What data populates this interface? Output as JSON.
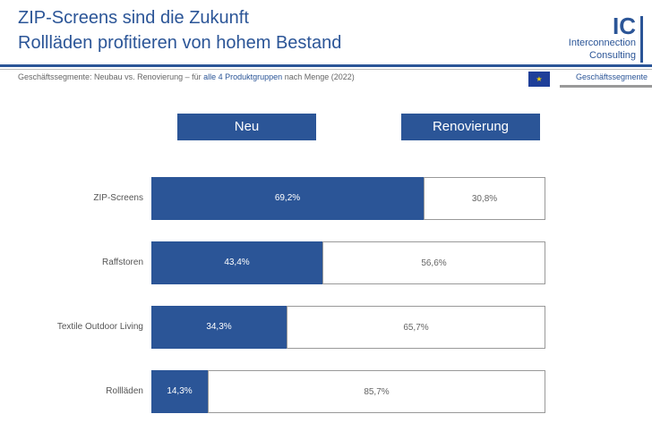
{
  "header": {
    "title_line1": "ZIP-Screens sind die Zukunft",
    "title_line2": "Rollläden profitieren von hohem Bestand",
    "subtitle_pre": "Geschäftssegmente: Neubau vs. Renovierung – für ",
    "subtitle_highlight": "alle 4 Produktgruppen",
    "subtitle_post": " nach Menge (2022)",
    "section_label": "Geschäftssegmente",
    "eu_flag_icon": "eu-flag-icon"
  },
  "logo": {
    "letters": "IC",
    "line1": "Interconnection",
    "line2": "Consulting"
  },
  "colors": {
    "accent": "#2B5597"
  },
  "chart_data": {
    "type": "bar",
    "stacked": true,
    "orientation": "horizontal",
    "categories": [
      "ZIP-Screens",
      "Raffstoren",
      "Textile Outdoor Living",
      "Rollläden"
    ],
    "series": [
      {
        "name": "Neu",
        "values": [
          69.2,
          43.4,
          34.3,
          14.3
        ],
        "labels": [
          "69,2%",
          "43,4%",
          "34,3%",
          "14,3%"
        ],
        "color": "#2B5597"
      },
      {
        "name": "Renovierung",
        "values": [
          30.8,
          56.6,
          65.7,
          85.7
        ],
        "labels": [
          "30,8%",
          "56,6%",
          "65,7%",
          "85,7%"
        ],
        "color": "#FFFFFF"
      }
    ],
    "xlim": [
      0,
      100
    ],
    "unit": "%"
  }
}
